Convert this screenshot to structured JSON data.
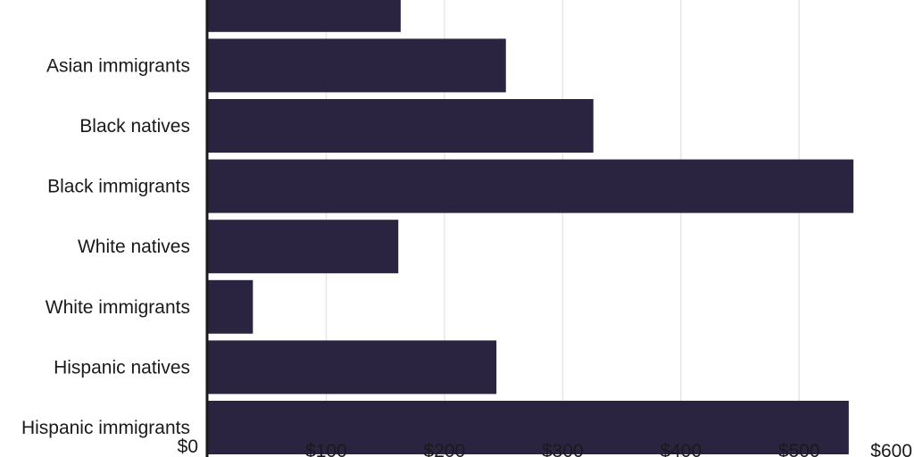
{
  "chart_data": {
    "type": "bar",
    "orientation": "horizontal",
    "categories": [
      "",
      "Asian immigrants",
      "Black natives",
      "Black immigrants",
      "White natives",
      "White immigrants",
      "Hispanic natives",
      "Hispanic immigrants"
    ],
    "values": [
      163,
      252,
      326,
      546,
      161,
      38,
      244,
      542
    ],
    "xlim": [
      0,
      600
    ],
    "x_ticks": [
      "$0",
      "$100",
      "$200",
      "$300",
      "$400",
      "$500",
      "$600"
    ],
    "x_tick_values": [
      0,
      100,
      200,
      300,
      400,
      500,
      600
    ],
    "grid": "vertical",
    "bar_color": "#2a2440",
    "grid_color": "#e6e6e6",
    "axis_color": "#1a1a1a"
  }
}
